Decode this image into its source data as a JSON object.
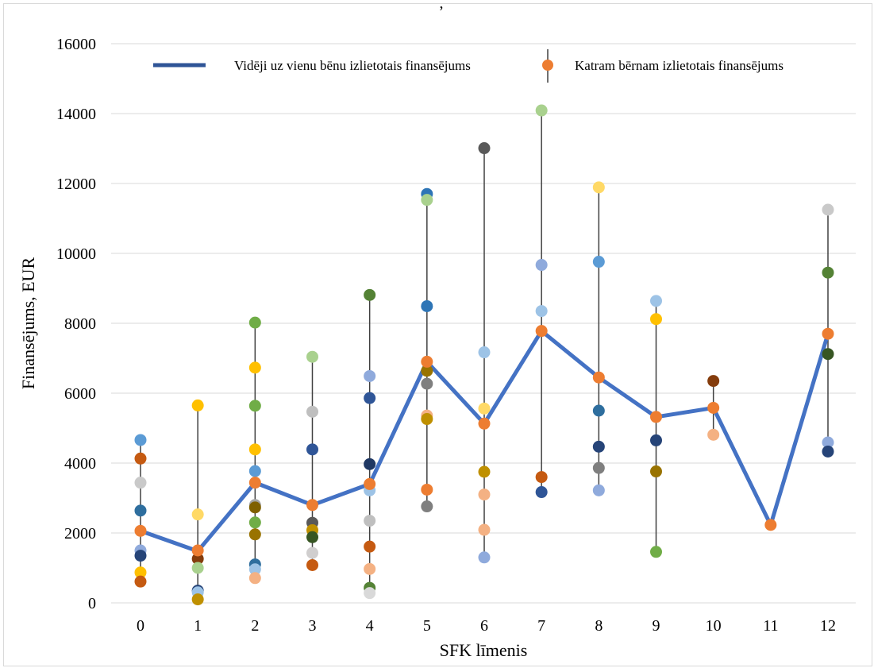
{
  "chart_data": {
    "type": "line",
    "xlabel": "SFK līmenis",
    "ylabel": "Finansējums, EUR",
    "title_fragment": ",",
    "categories": [
      "0",
      "1",
      "2",
      "3",
      "4",
      "5",
      "6",
      "7",
      "8",
      "9",
      "10",
      "11",
      "12"
    ],
    "yticks": [
      "0",
      "2000",
      "4000",
      "6000",
      "8000",
      "10000",
      "12000",
      "14000",
      "16000"
    ],
    "ylim": [
      0,
      16000
    ],
    "grid": "horizontal",
    "legend_position": "top",
    "series": [
      {
        "name": "Vidēji uz vienu bēnu izlietotais finansējums",
        "type": "line",
        "color": "#4472c4",
        "values": [
          2060,
          1480,
          3440,
          2800,
          3400,
          6900,
          5130,
          7780,
          6450,
          5320,
          5580,
          2230,
          7700
        ]
      },
      {
        "name": "Katram bērnam izlietotais finansējums",
        "type": "scatter",
        "color": "#ed7d31",
        "points": [
          {
            "x": 0,
            "y": 4660,
            "color": "#5b9bd5"
          },
          {
            "x": 0,
            "y": 4130,
            "color": "#c55a11"
          },
          {
            "x": 0,
            "y": 3440,
            "color": "#c9c9c9"
          },
          {
            "x": 0,
            "y": 2640,
            "color": "#2e6e9e"
          },
          {
            "x": 0,
            "y": 2060,
            "color": "#ed7d31"
          },
          {
            "x": 0,
            "y": 1500,
            "color": "#8faadc"
          },
          {
            "x": 0,
            "y": 1350,
            "color": "#264478"
          },
          {
            "x": 0,
            "y": 870,
            "color": "#ffc000"
          },
          {
            "x": 0,
            "y": 610,
            "color": "#c55a11"
          },
          {
            "x": 1,
            "y": 5650,
            "color": "#ffc000"
          },
          {
            "x": 1,
            "y": 2530,
            "color": "#ffd966"
          },
          {
            "x": 1,
            "y": 1500,
            "color": "#ed7d31"
          },
          {
            "x": 1,
            "y": 1260,
            "color": "#843c0c"
          },
          {
            "x": 1,
            "y": 1000,
            "color": "#a9d18e"
          },
          {
            "x": 1,
            "y": 350,
            "color": "#264478"
          },
          {
            "x": 1,
            "y": 300,
            "color": "#9dc3e6"
          },
          {
            "x": 1,
            "y": 100,
            "color": "#bf9000"
          },
          {
            "x": 2,
            "y": 8020,
            "color": "#70ad47"
          },
          {
            "x": 2,
            "y": 6730,
            "color": "#ffc000"
          },
          {
            "x": 2,
            "y": 5640,
            "color": "#70ad47"
          },
          {
            "x": 2,
            "y": 4390,
            "color": "#ffc000"
          },
          {
            "x": 2,
            "y": 3770,
            "color": "#5b9bd5"
          },
          {
            "x": 2,
            "y": 3440,
            "color": "#ed7d31"
          },
          {
            "x": 2,
            "y": 2800,
            "color": "#a5a5a5"
          },
          {
            "x": 2,
            "y": 2730,
            "color": "#7f6000"
          },
          {
            "x": 2,
            "y": 2300,
            "color": "#70ad47"
          },
          {
            "x": 2,
            "y": 1960,
            "color": "#997300"
          },
          {
            "x": 2,
            "y": 1100,
            "color": "#2e6e9e"
          },
          {
            "x": 2,
            "y": 960,
            "color": "#9dc3e6"
          },
          {
            "x": 2,
            "y": 710,
            "color": "#f4b183"
          },
          {
            "x": 3,
            "y": 7040,
            "color": "#a9d18e"
          },
          {
            "x": 3,
            "y": 5470,
            "color": "#bfbfbf"
          },
          {
            "x": 3,
            "y": 4390,
            "color": "#2f5597"
          },
          {
            "x": 3,
            "y": 2800,
            "color": "#ed7d31"
          },
          {
            "x": 3,
            "y": 2290,
            "color": "#595959"
          },
          {
            "x": 3,
            "y": 2080,
            "color": "#bf9000"
          },
          {
            "x": 3,
            "y": 1880,
            "color": "#375623"
          },
          {
            "x": 3,
            "y": 1430,
            "color": "#d0cece"
          },
          {
            "x": 3,
            "y": 1080,
            "color": "#c55a11"
          },
          {
            "x": 4,
            "y": 8810,
            "color": "#548235"
          },
          {
            "x": 4,
            "y": 6490,
            "color": "#8faadc"
          },
          {
            "x": 4,
            "y": 5860,
            "color": "#2f5597"
          },
          {
            "x": 4,
            "y": 3970,
            "color": "#1f3864"
          },
          {
            "x": 4,
            "y": 3400,
            "color": "#ed7d31"
          },
          {
            "x": 4,
            "y": 3220,
            "color": "#9dc3e6"
          },
          {
            "x": 4,
            "y": 2350,
            "color": "#bfbfbf"
          },
          {
            "x": 4,
            "y": 1610,
            "color": "#c55a11"
          },
          {
            "x": 4,
            "y": 970,
            "color": "#f4b183"
          },
          {
            "x": 4,
            "y": 430,
            "color": "#548235"
          },
          {
            "x": 4,
            "y": 280,
            "color": "#d9d9d9"
          },
          {
            "x": 5,
            "y": 11700,
            "color": "#2e75b6"
          },
          {
            "x": 5,
            "y": 11530,
            "color": "#a9d18e"
          },
          {
            "x": 5,
            "y": 8490,
            "color": "#2e75b6"
          },
          {
            "x": 5,
            "y": 6900,
            "color": "#ed7d31"
          },
          {
            "x": 5,
            "y": 6640,
            "color": "#997300"
          },
          {
            "x": 5,
            "y": 6270,
            "color": "#7f7f7f"
          },
          {
            "x": 5,
            "y": 5360,
            "color": "#f4b183"
          },
          {
            "x": 5,
            "y": 5260,
            "color": "#bf9000"
          },
          {
            "x": 5,
            "y": 3240,
            "color": "#ed7d31"
          },
          {
            "x": 5,
            "y": 2760,
            "color": "#7f7f7f"
          },
          {
            "x": 6,
            "y": 13010,
            "color": "#595959"
          },
          {
            "x": 6,
            "y": 7170,
            "color": "#9dc3e6"
          },
          {
            "x": 6,
            "y": 5560,
            "color": "#ffd966"
          },
          {
            "x": 6,
            "y": 5130,
            "color": "#ed7d31"
          },
          {
            "x": 6,
            "y": 3750,
            "color": "#bf9000"
          },
          {
            "x": 6,
            "y": 3100,
            "color": "#f4b183"
          },
          {
            "x": 6,
            "y": 2090,
            "color": "#f4b183"
          },
          {
            "x": 6,
            "y": 1300,
            "color": "#8faadc"
          },
          {
            "x": 7,
            "y": 14090,
            "color": "#a9d18e"
          },
          {
            "x": 7,
            "y": 9670,
            "color": "#8faadc"
          },
          {
            "x": 7,
            "y": 8350,
            "color": "#9dc3e6"
          },
          {
            "x": 7,
            "y": 7780,
            "color": "#ed7d31"
          },
          {
            "x": 7,
            "y": 3600,
            "color": "#c55a11"
          },
          {
            "x": 7,
            "y": 3170,
            "color": "#2f5597"
          },
          {
            "x": 8,
            "y": 11890,
            "color": "#ffd966"
          },
          {
            "x": 8,
            "y": 9760,
            "color": "#5b9bd5"
          },
          {
            "x": 8,
            "y": 6450,
            "color": "#ed7d31"
          },
          {
            "x": 8,
            "y": 5500,
            "color": "#2e6e9e"
          },
          {
            "x": 8,
            "y": 4470,
            "color": "#264478"
          },
          {
            "x": 8,
            "y": 3860,
            "color": "#7f7f7f"
          },
          {
            "x": 8,
            "y": 3220,
            "color": "#8faadc"
          },
          {
            "x": 9,
            "y": 8640,
            "color": "#9dc3e6"
          },
          {
            "x": 9,
            "y": 8120,
            "color": "#ffc000"
          },
          {
            "x": 9,
            "y": 5320,
            "color": "#ed7d31"
          },
          {
            "x": 9,
            "y": 4650,
            "color": "#264478"
          },
          {
            "x": 9,
            "y": 3760,
            "color": "#997300"
          },
          {
            "x": 9,
            "y": 1460,
            "color": "#70ad47"
          },
          {
            "x": 10,
            "y": 6350,
            "color": "#843c0c"
          },
          {
            "x": 10,
            "y": 5580,
            "color": "#ed7d31"
          },
          {
            "x": 10,
            "y": 4810,
            "color": "#f4b183"
          },
          {
            "x": 11,
            "y": 2230,
            "color": "#ed7d31"
          },
          {
            "x": 12,
            "y": 11250,
            "color": "#c9c9c9"
          },
          {
            "x": 12,
            "y": 9450,
            "color": "#548235"
          },
          {
            "x": 12,
            "y": 7700,
            "color": "#ed7d31"
          },
          {
            "x": 12,
            "y": 7120,
            "color": "#375623"
          },
          {
            "x": 12,
            "y": 4590,
            "color": "#8faadc"
          },
          {
            "x": 12,
            "y": 4330,
            "color": "#264478"
          }
        ]
      }
    ],
    "range_bars": [
      {
        "x": 0,
        "low": 610,
        "high": 4660
      },
      {
        "x": 1,
        "low": 100,
        "high": 5650
      },
      {
        "x": 2,
        "low": 710,
        "high": 8020
      },
      {
        "x": 3,
        "low": 1080,
        "high": 7040
      },
      {
        "x": 4,
        "low": 280,
        "high": 8810
      },
      {
        "x": 5,
        "low": 2760,
        "high": 11700
      },
      {
        "x": 6,
        "low": 1300,
        "high": 13010
      },
      {
        "x": 7,
        "low": 3170,
        "high": 14090
      },
      {
        "x": 8,
        "low": 3220,
        "high": 11890
      },
      {
        "x": 9,
        "low": 1460,
        "high": 8640
      },
      {
        "x": 10,
        "low": 4810,
        "high": 6350
      },
      {
        "x": 12,
        "low": 4330,
        "high": 11250
      }
    ]
  }
}
